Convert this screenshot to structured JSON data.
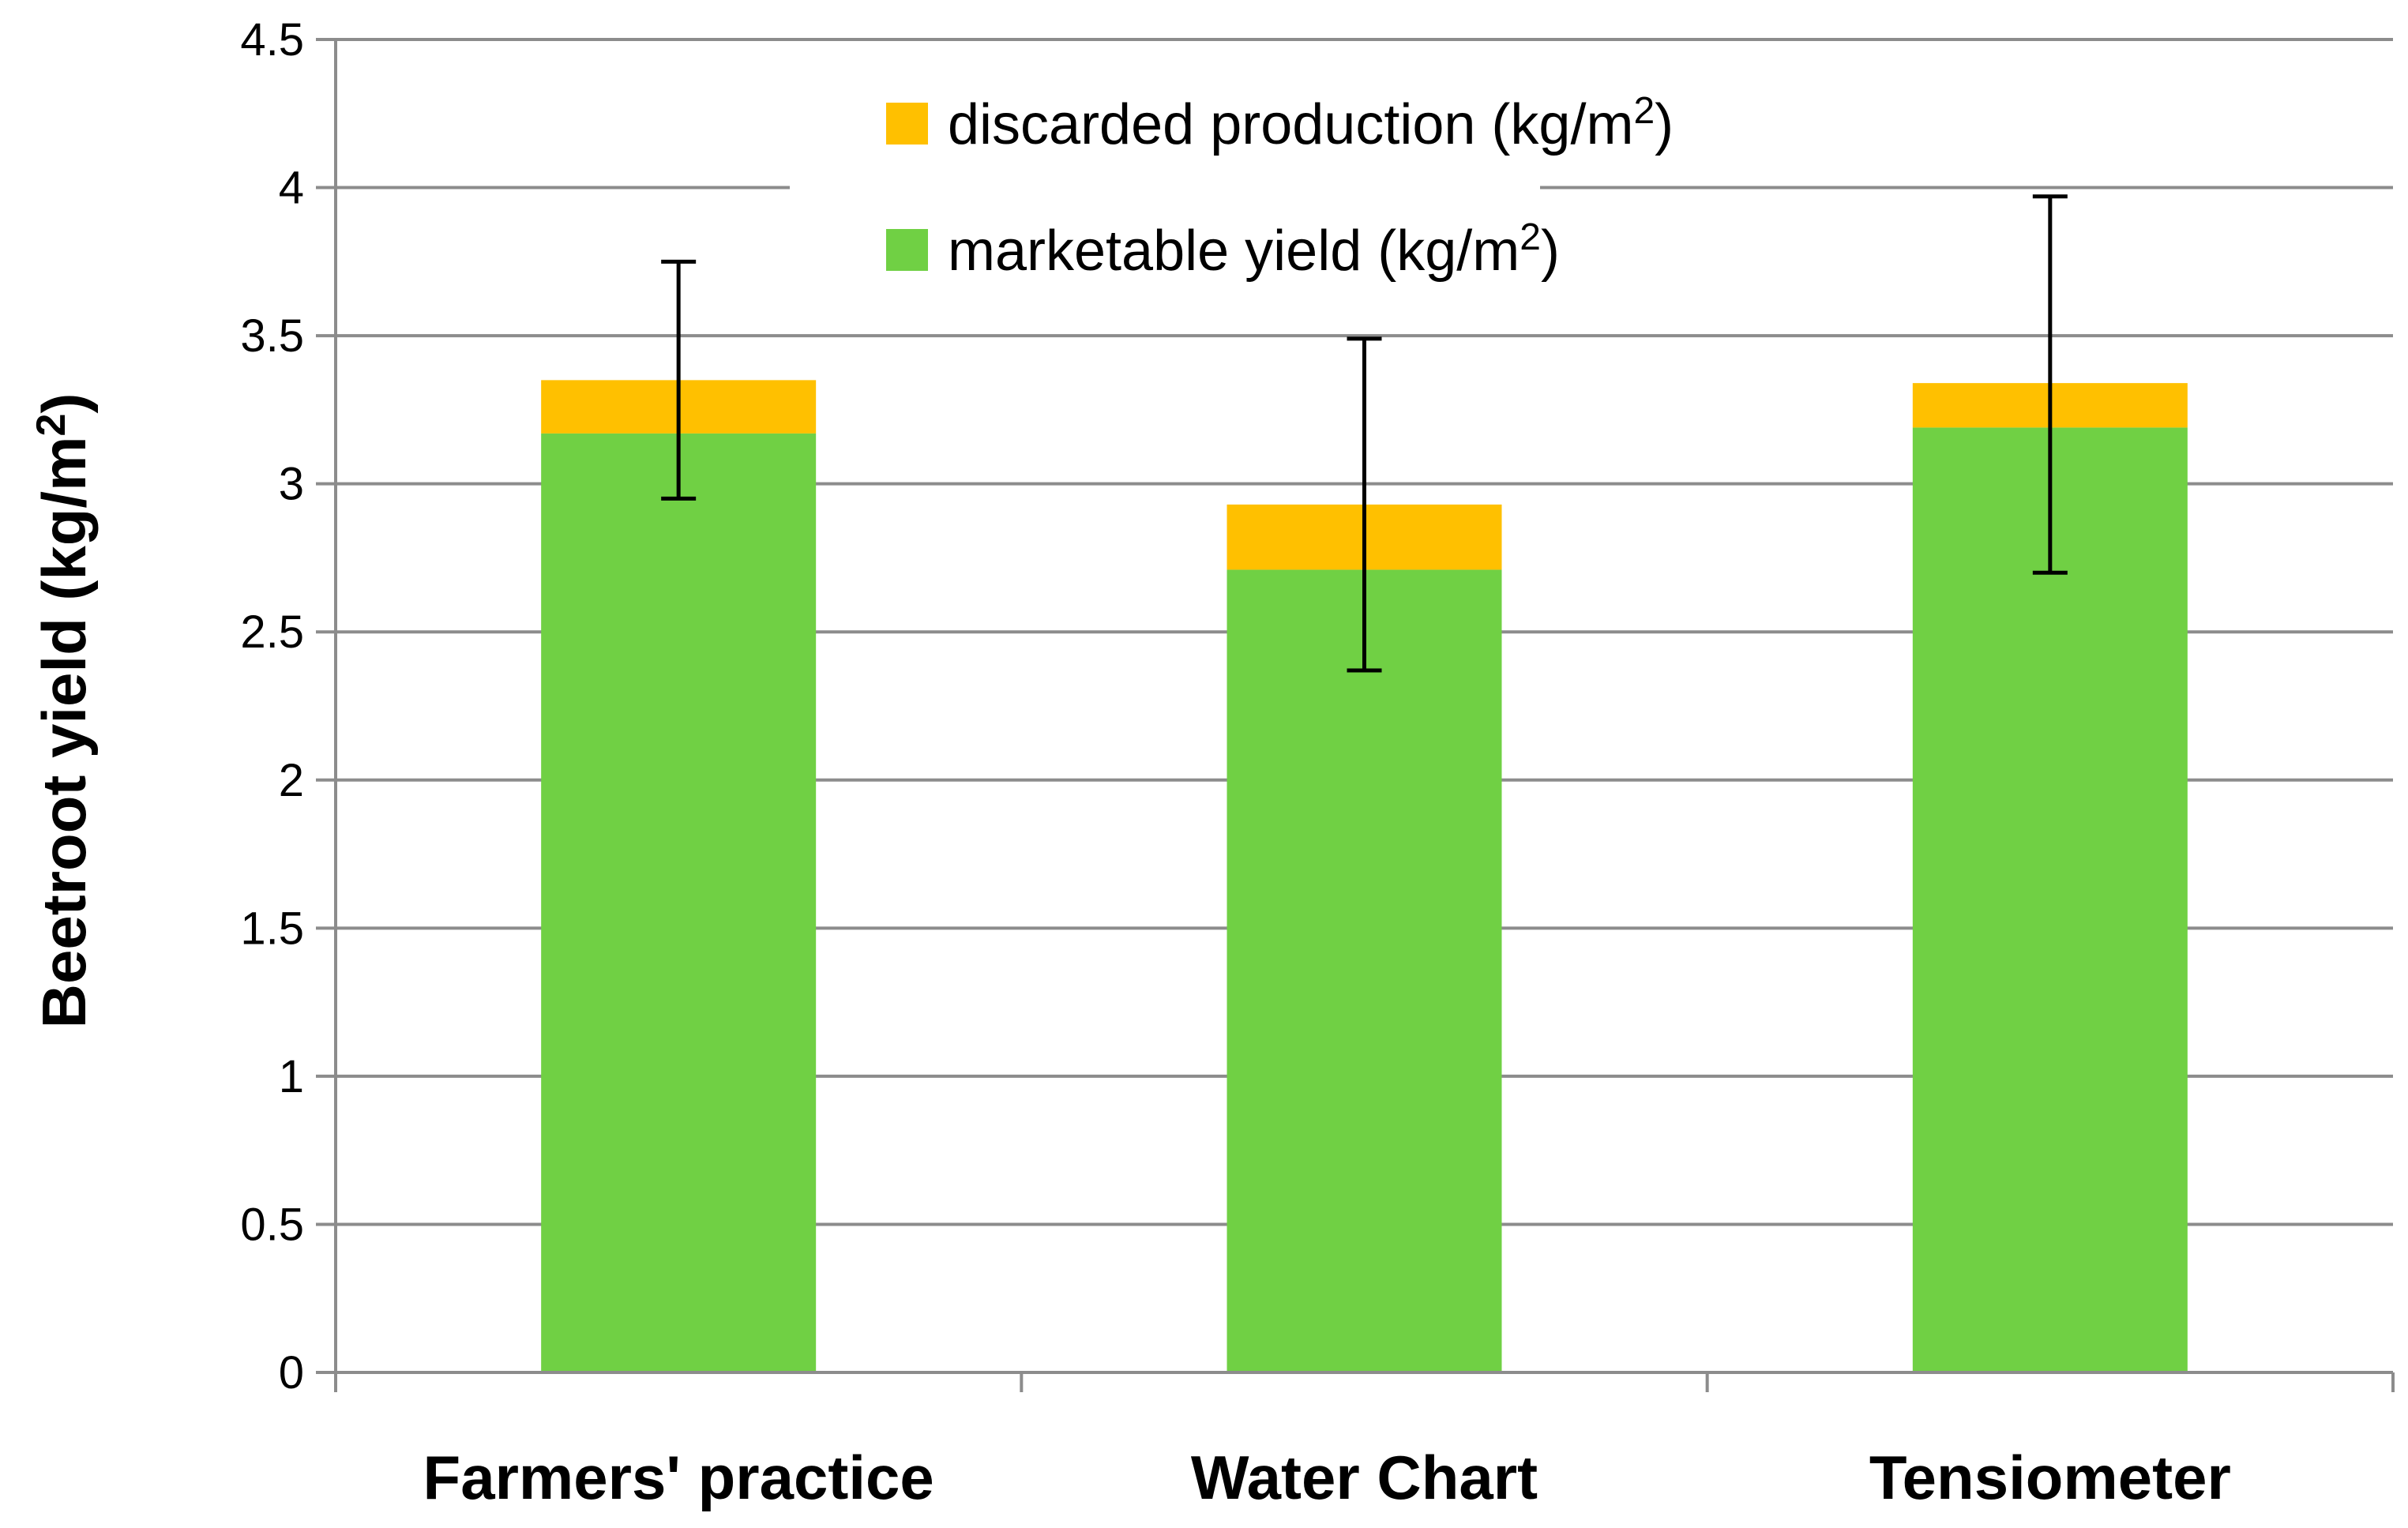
{
  "chart_data": {
    "type": "bar",
    "stacked": true,
    "title": "",
    "xlabel": "",
    "ylabel": {
      "main": "Beetroot yield  (kg/m",
      "sup": "2",
      "tail": ")"
    },
    "ylim": [
      0,
      4.5
    ],
    "yticks": [
      "0",
      "0.5",
      "1",
      "1.5",
      "2",
      "2.5",
      "3",
      "3.5",
      "4",
      "4.5"
    ],
    "ytick_values": [
      0,
      0.5,
      1,
      1.5,
      2,
      2.5,
      3,
      3.5,
      4,
      4.5
    ],
    "categories": [
      "Farmers' practice",
      "Water Chart",
      "Tensiometer"
    ],
    "series": [
      {
        "name": "marketable yield (kg/m2)",
        "label_main": "marketable yield (kg/m",
        "label_sup": "2",
        "label_tail": ")",
        "color": "#70D044",
        "values": [
          3.17,
          2.71,
          3.19
        ]
      },
      {
        "name": "discarded production (kg/m2)",
        "label_main": "discarded production (kg/m",
        "label_sup": "2",
        "label_tail": ")",
        "color": "#FFC000",
        "values": [
          0.18,
          0.22,
          0.15
        ]
      }
    ],
    "error_bars": [
      {
        "category": "Farmers' practice",
        "low": 2.95,
        "high": 3.75
      },
      {
        "category": "Water Chart",
        "low": 2.37,
        "high": 3.49
      },
      {
        "category": "Tensiometer",
        "low": 2.7,
        "high": 3.97
      }
    ],
    "legend_position": "top-center",
    "grid": true
  }
}
